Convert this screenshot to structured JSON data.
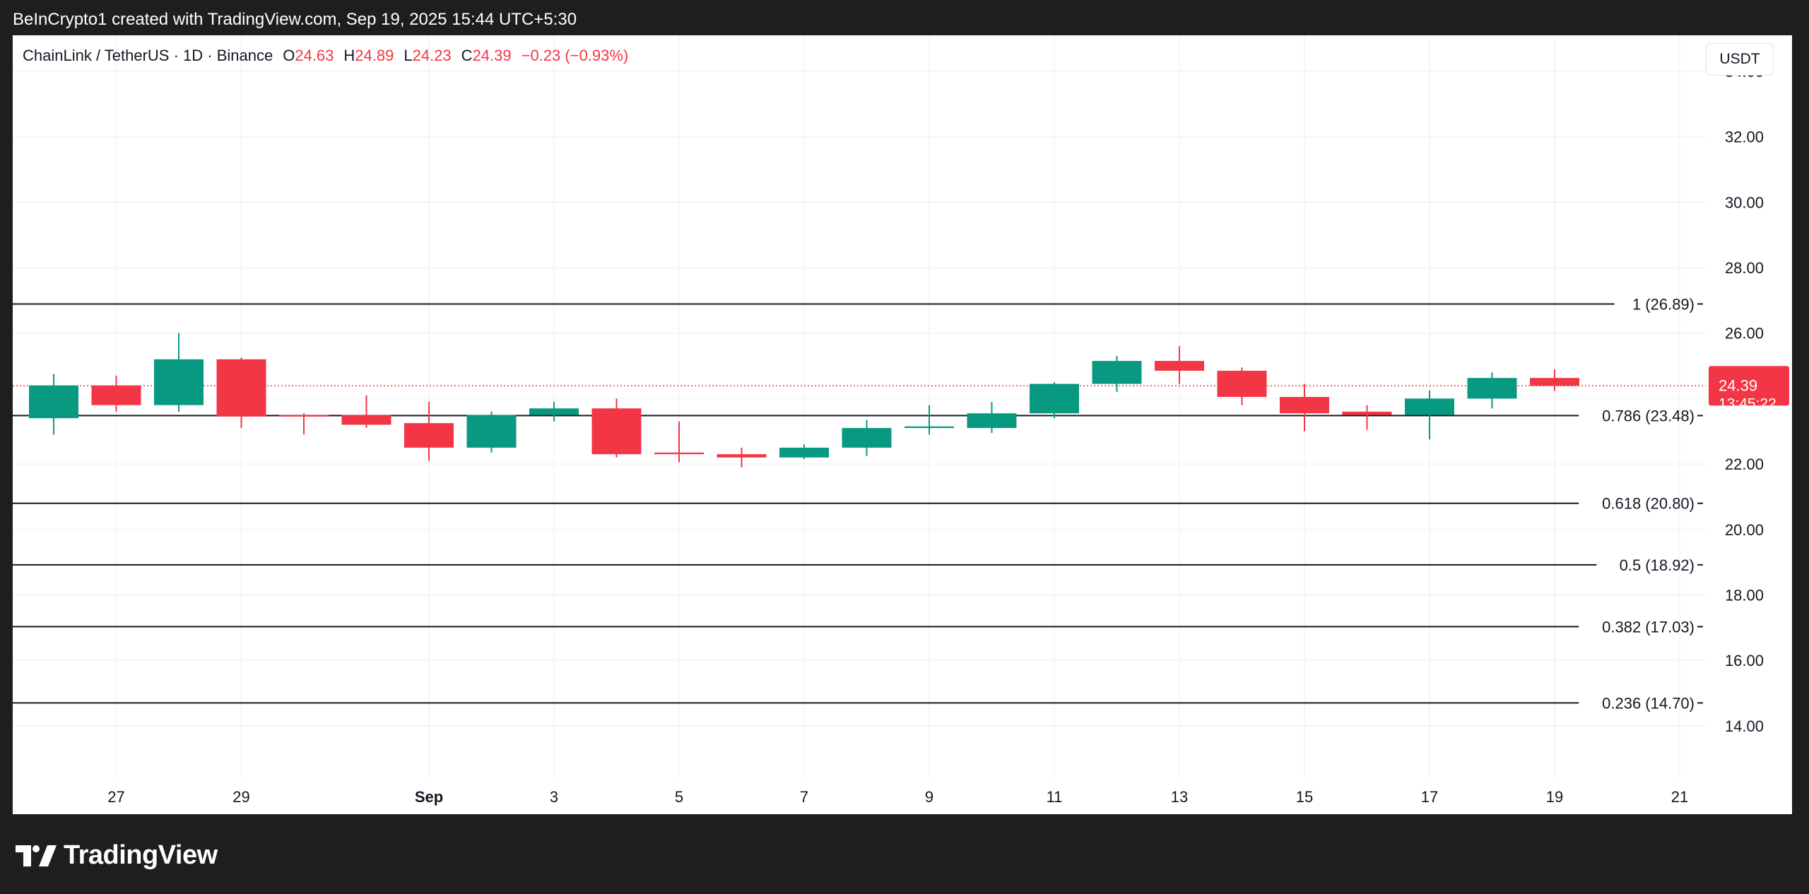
{
  "caption": "BeInCrypto1 created with TradingView.com, Sep 19, 2025 15:44 UTC+5:30",
  "legend": {
    "symbol": "ChainLink / TetherUS · 1D · Binance",
    "o_label": "O",
    "o_value": "24.63",
    "h_label": "H",
    "h_value": "24.89",
    "l_label": "L",
    "l_value": "24.23",
    "c_label": "C",
    "c_value": "24.39",
    "change": "−0.23 (−0.93%)"
  },
  "currency_button": "USDT",
  "logo": {
    "text": "TradingView",
    "icon": "tradingview-logo-icon"
  },
  "colors": {
    "up": "#089981",
    "down": "#f23645",
    "grid": "#f0f3fa",
    "level": "#131722",
    "price_tag": "#f23645"
  },
  "chart_data": {
    "type": "candlestick",
    "symbol": "ChainLink / TetherUS",
    "interval": "1D",
    "exchange": "Binance",
    "ylim": [
      12.4,
      35.1
    ],
    "yticks": [
      "34.00",
      "32.00",
      "30.00",
      "28.00",
      "26.00",
      "22.00",
      "20.00",
      "18.00",
      "16.00",
      "14.00"
    ],
    "xticks": [
      "27",
      "29",
      "Sep",
      "3",
      "5",
      "7",
      "9",
      "11",
      "13",
      "15",
      "17",
      "19",
      "21"
    ],
    "grid": true,
    "last_price": {
      "value": "24.39",
      "countdown": "13:45:22"
    },
    "fib_levels": [
      {
        "label": "1 (26.89)",
        "value": 26.89
      },
      {
        "label": "0.786 (23.48)",
        "value": 23.48
      },
      {
        "label": "0.618 (20.80)",
        "value": 20.8
      },
      {
        "label": "0.5 (18.92)",
        "value": 18.92
      },
      {
        "label": "0.382 (17.03)",
        "value": 17.03
      },
      {
        "label": "0.236 (14.70)",
        "value": 14.7
      }
    ],
    "candles": [
      {
        "date": "2025-08-26",
        "o": 23.4,
        "h": 24.75,
        "l": 22.9,
        "c": 24.4
      },
      {
        "date": "2025-08-27",
        "o": 24.4,
        "h": 24.7,
        "l": 23.6,
        "c": 23.8
      },
      {
        "date": "2025-08-28",
        "o": 23.8,
        "h": 26.0,
        "l": 23.6,
        "c": 25.2
      },
      {
        "date": "2025-08-29",
        "o": 25.2,
        "h": 25.25,
        "l": 23.1,
        "c": 23.45
      },
      {
        "date": "2025-08-30",
        "o": 23.5,
        "h": 23.55,
        "l": 22.9,
        "c": 23.45
      },
      {
        "date": "2025-08-31",
        "o": 23.5,
        "h": 24.1,
        "l": 23.1,
        "c": 23.2
      },
      {
        "date": "2025-09-01",
        "o": 23.25,
        "h": 23.9,
        "l": 22.1,
        "c": 22.5
      },
      {
        "date": "2025-09-02",
        "o": 22.5,
        "h": 23.6,
        "l": 22.35,
        "c": 23.5
      },
      {
        "date": "2025-09-03",
        "o": 23.5,
        "h": 23.9,
        "l": 23.3,
        "c": 23.7
      },
      {
        "date": "2025-09-04",
        "o": 23.7,
        "h": 24.0,
        "l": 22.2,
        "c": 22.3
      },
      {
        "date": "2025-09-05",
        "o": 22.35,
        "h": 23.3,
        "l": 22.05,
        "c": 22.3
      },
      {
        "date": "2025-09-06",
        "o": 22.3,
        "h": 22.5,
        "l": 21.9,
        "c": 22.2
      },
      {
        "date": "2025-09-07",
        "o": 22.2,
        "h": 22.6,
        "l": 22.15,
        "c": 22.5
      },
      {
        "date": "2025-09-08",
        "o": 22.5,
        "h": 23.35,
        "l": 22.25,
        "c": 23.1
      },
      {
        "date": "2025-09-09",
        "o": 23.1,
        "h": 23.8,
        "l": 22.9,
        "c": 23.15
      },
      {
        "date": "2025-09-10",
        "o": 23.1,
        "h": 23.9,
        "l": 22.95,
        "c": 23.55
      },
      {
        "date": "2025-09-11",
        "o": 23.55,
        "h": 24.5,
        "l": 23.4,
        "c": 24.45
      },
      {
        "date": "2025-09-12",
        "o": 24.45,
        "h": 25.3,
        "l": 24.2,
        "c": 25.15
      },
      {
        "date": "2025-09-13",
        "o": 25.15,
        "h": 25.6,
        "l": 24.45,
        "c": 24.85
      },
      {
        "date": "2025-09-14",
        "o": 24.85,
        "h": 24.95,
        "l": 23.8,
        "c": 24.05
      },
      {
        "date": "2025-09-15",
        "o": 24.05,
        "h": 24.45,
        "l": 23.0,
        "c": 23.55
      },
      {
        "date": "2025-09-16",
        "o": 23.6,
        "h": 23.8,
        "l": 23.05,
        "c": 23.5
      },
      {
        "date": "2025-09-17",
        "o": 23.5,
        "h": 24.25,
        "l": 22.75,
        "c": 24.0
      },
      {
        "date": "2025-09-18",
        "o": 24.0,
        "h": 24.8,
        "l": 23.7,
        "c": 24.63
      },
      {
        "date": "2025-09-19",
        "o": 24.63,
        "h": 24.89,
        "l": 24.23,
        "c": 24.39
      }
    ]
  }
}
